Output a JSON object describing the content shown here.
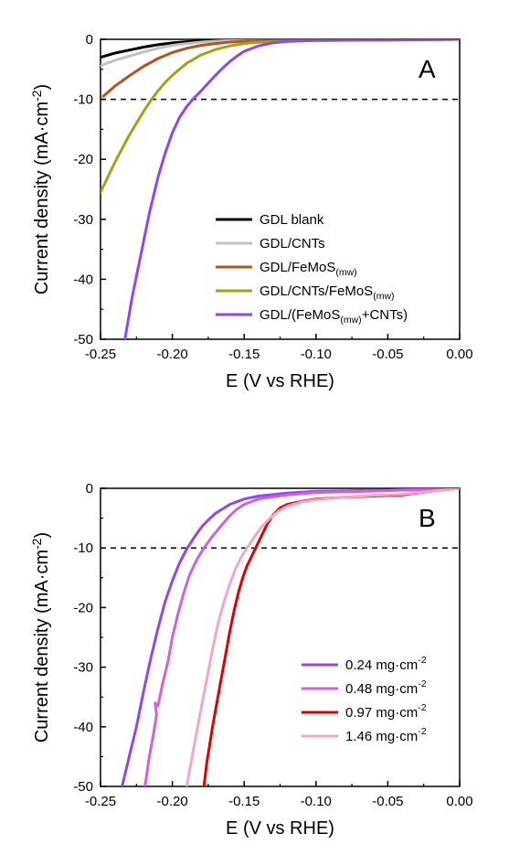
{
  "chart_data": [
    {
      "type": "line",
      "panel_label": "A",
      "xlabel": "E (V vs RHE)",
      "ylabel": "Current density (mA·cm⁻²)",
      "xlim": [
        -0.25,
        0.0
      ],
      "ylim": [
        -50,
        0
      ],
      "x_ticks": [
        "-0.25",
        "-0.20",
        "-0.15",
        "-0.10",
        "-0.05",
        "0.00"
      ],
      "y_ticks": [
        "0",
        "-10",
        "-20",
        "-30",
        "-40",
        "-50"
      ],
      "reference_line_y": -10,
      "legend_position": "bottom-right",
      "series": [
        {
          "name": "GDL blank",
          "color": "#000000",
          "points": [
            [
              -0.25,
              -3.0
            ],
            [
              -0.24,
              -2.3
            ],
            [
              -0.23,
              -1.8
            ],
            [
              -0.22,
              -1.3
            ],
            [
              -0.21,
              -0.9
            ],
            [
              -0.2,
              -0.6
            ],
            [
              -0.19,
              -0.4
            ],
            [
              -0.18,
              -0.25
            ],
            [
              -0.17,
              -0.15
            ],
            [
              -0.15,
              -0.08
            ],
            [
              -0.12,
              -0.05
            ],
            [
              -0.08,
              -0.03
            ],
            [
              -0.04,
              -0.02
            ],
            [
              0.0,
              0.0
            ]
          ]
        },
        {
          "name": "GDL/CNTs",
          "color": "#c0c0c0",
          "points": [
            [
              -0.25,
              -4.4
            ],
            [
              -0.24,
              -3.5
            ],
            [
              -0.23,
              -2.8
            ],
            [
              -0.22,
              -2.1
            ],
            [
              -0.21,
              -1.5
            ],
            [
              -0.2,
              -1.0
            ],
            [
              -0.19,
              -0.7
            ],
            [
              -0.18,
              -0.45
            ],
            [
              -0.17,
              -0.3
            ],
            [
              -0.16,
              -0.2
            ],
            [
              -0.14,
              -0.12
            ],
            [
              -0.1,
              -0.06
            ],
            [
              -0.05,
              -0.03
            ],
            [
              0.0,
              0.0
            ]
          ]
        },
        {
          "name": "GDL/FeMoS(mw)",
          "color": "#b5531f",
          "points": [
            [
              -0.248,
              -9.5
            ],
            [
              -0.24,
              -7.8
            ],
            [
              -0.23,
              -6.1
            ],
            [
              -0.22,
              -4.5
            ],
            [
              -0.21,
              -3.2
            ],
            [
              -0.2,
              -2.2
            ],
            [
              -0.19,
              -1.5
            ],
            [
              -0.18,
              -1.0
            ],
            [
              -0.17,
              -0.7
            ],
            [
              -0.16,
              -0.45
            ],
            [
              -0.15,
              -0.3
            ],
            [
              -0.13,
              -0.2
            ],
            [
              -0.1,
              -0.12
            ],
            [
              -0.05,
              -0.05
            ],
            [
              0.0,
              0.0
            ]
          ]
        },
        {
          "name": "GDL/CNTs/FeMoS(mw)",
          "color": "#a6a019",
          "points": [
            [
              -0.25,
              -25.5
            ],
            [
              -0.245,
              -23.0
            ],
            [
              -0.24,
              -20.5
            ],
            [
              -0.235,
              -18.2
            ],
            [
              -0.23,
              -16.0
            ],
            [
              -0.225,
              -14.0
            ],
            [
              -0.22,
              -12.0
            ],
            [
              -0.215,
              -10.2
            ],
            [
              -0.21,
              -8.6
            ],
            [
              -0.205,
              -7.2
            ],
            [
              -0.2,
              -6.0
            ],
            [
              -0.19,
              -4.0
            ],
            [
              -0.18,
              -2.6
            ],
            [
              -0.17,
              -1.7
            ],
            [
              -0.16,
              -1.1
            ],
            [
              -0.15,
              -0.7
            ],
            [
              -0.14,
              -0.5
            ],
            [
              -0.12,
              -0.3
            ],
            [
              -0.1,
              -0.2
            ],
            [
              -0.05,
              -0.1
            ],
            [
              0.0,
              0.0
            ]
          ]
        },
        {
          "name": "GDL/(FeMoS(mw)+CNTs)",
          "color": "#9444f0",
          "points": [
            [
              -0.233,
              -50
            ],
            [
              -0.228,
              -43
            ],
            [
              -0.222,
              -36
            ],
            [
              -0.216,
              -29
            ],
            [
              -0.21,
              -23
            ],
            [
              -0.205,
              -19
            ],
            [
              -0.2,
              -15.6
            ],
            [
              -0.195,
              -13.0
            ],
            [
              -0.19,
              -11.2
            ],
            [
              -0.185,
              -9.8
            ],
            [
              -0.18,
              -8.6
            ],
            [
              -0.175,
              -7.3
            ],
            [
              -0.17,
              -6.0
            ],
            [
              -0.165,
              -4.8
            ],
            [
              -0.16,
              -3.7
            ],
            [
              -0.155,
              -2.8
            ],
            [
              -0.15,
              -2.0
            ],
            [
              -0.14,
              -1.1
            ],
            [
              -0.13,
              -0.6
            ],
            [
              -0.12,
              -0.35
            ],
            [
              -0.1,
              -0.2
            ],
            [
              -0.05,
              -0.1
            ],
            [
              0.0,
              0.0
            ]
          ]
        }
      ]
    },
    {
      "type": "line",
      "panel_label": "B",
      "xlabel": "E (V vs RHE)",
      "ylabel": "Current density (mA·cm⁻²)",
      "xlim": [
        -0.25,
        0.0
      ],
      "ylim": [
        -50,
        0
      ],
      "x_ticks": [
        "-0.25",
        "-0.20",
        "-0.15",
        "-0.10",
        "-0.05",
        "0.00"
      ],
      "y_ticks": [
        "0",
        "-10",
        "-20",
        "-30",
        "-40",
        "-50"
      ],
      "reference_line_y": -10,
      "legend_position": "bottom-right",
      "series": [
        {
          "name": "0.24 mg·cm⁻²",
          "color": "#9444f0",
          "points": [
            [
              -0.235,
              -50
            ],
            [
              -0.23,
              -45
            ],
            [
              -0.225,
              -40
            ],
            [
              -0.22,
              -34
            ],
            [
              -0.215,
              -28.5
            ],
            [
              -0.21,
              -23.5
            ],
            [
              -0.205,
              -19
            ],
            [
              -0.2,
              -15.5
            ],
            [
              -0.195,
              -12.5
            ],
            [
              -0.19,
              -10.2
            ],
            [
              -0.185,
              -8.3
            ],
            [
              -0.18,
              -6.6
            ],
            [
              -0.175,
              -5.3
            ],
            [
              -0.17,
              -4.2
            ],
            [
              -0.16,
              -2.7
            ],
            [
              -0.15,
              -1.8
            ],
            [
              -0.14,
              -1.3
            ],
            [
              -0.12,
              -0.8
            ],
            [
              -0.1,
              -0.5
            ],
            [
              -0.05,
              -0.3
            ],
            [
              0.0,
              0.0
            ]
          ]
        },
        {
          "name": "0.48 mg·cm⁻²",
          "color": "#d060e0",
          "points": [
            [
              -0.219,
              -50
            ],
            [
              -0.216,
              -45
            ],
            [
              -0.213,
              -41
            ],
            [
              -0.211,
              -38
            ],
            [
              -0.212,
              -36
            ],
            [
              -0.21,
              -36.5
            ],
            [
              -0.207,
              -33
            ],
            [
              -0.203,
              -29
            ],
            [
              -0.2,
              -25
            ],
            [
              -0.196,
              -21
            ],
            [
              -0.192,
              -17.5
            ],
            [
              -0.188,
              -14.5
            ],
            [
              -0.183,
              -12
            ],
            [
              -0.178,
              -10
            ],
            [
              -0.172,
              -8
            ],
            [
              -0.165,
              -6
            ],
            [
              -0.16,
              -4.6
            ],
            [
              -0.155,
              -3.5
            ],
            [
              -0.15,
              -2.7
            ],
            [
              -0.14,
              -1.8
            ],
            [
              -0.12,
              -1.1
            ],
            [
              -0.1,
              -0.7
            ],
            [
              -0.05,
              -0.4
            ],
            [
              0.0,
              0.0
            ]
          ]
        },
        {
          "name": "0.97 mg·cm⁻²",
          "color": "#e00000",
          "points": [
            [
              -0.178,
              -50
            ],
            [
              -0.176,
              -46
            ],
            [
              -0.174,
              -43
            ],
            [
              -0.172,
              -40
            ],
            [
              -0.169,
              -36
            ],
            [
              -0.166,
              -32
            ],
            [
              -0.163,
              -28
            ],
            [
              -0.16,
              -24
            ],
            [
              -0.157,
              -20.5
            ],
            [
              -0.154,
              -17.5
            ],
            [
              -0.151,
              -15
            ],
            [
              -0.148,
              -13
            ],
            [
              -0.145,
              -11.5
            ],
            [
              -0.142,
              -10
            ],
            [
              -0.138,
              -8
            ],
            [
              -0.134,
              -6
            ],
            [
              -0.13,
              -4.5
            ],
            [
              -0.125,
              -3.3
            ],
            [
              -0.12,
              -2.7
            ],
            [
              -0.11,
              -2.2
            ],
            [
              -0.1,
              -1.8
            ],
            [
              -0.08,
              -1.5
            ],
            [
              -0.06,
              -1.3
            ],
            [
              -0.04,
              -1.1
            ],
            [
              -0.03,
              -0.8
            ],
            [
              -0.02,
              -0.5
            ],
            [
              0.0,
              0.0
            ]
          ]
        },
        {
          "name": "1.46 mg·cm⁻²",
          "color": "#f4a6c8",
          "points": [
            [
              -0.19,
              -50
            ],
            [
              -0.187,
              -46
            ],
            [
              -0.184,
              -42
            ],
            [
              -0.18,
              -37
            ],
            [
              -0.176,
              -32
            ],
            [
              -0.172,
              -27
            ],
            [
              -0.168,
              -22.5
            ],
            [
              -0.164,
              -19
            ],
            [
              -0.16,
              -16
            ],
            [
              -0.156,
              -13.5
            ],
            [
              -0.152,
              -11.5
            ],
            [
              -0.148,
              -10
            ],
            [
              -0.143,
              -8.2
            ],
            [
              -0.138,
              -6.5
            ],
            [
              -0.132,
              -5
            ],
            [
              -0.126,
              -3.8
            ],
            [
              -0.12,
              -3
            ],
            [
              -0.11,
              -2.3
            ],
            [
              -0.1,
              -1.9
            ],
            [
              -0.08,
              -1.5
            ],
            [
              -0.06,
              -1.2
            ],
            [
              -0.04,
              -1.0
            ],
            [
              -0.02,
              -0.5
            ],
            [
              0.0,
              0.0
            ]
          ]
        }
      ]
    }
  ]
}
